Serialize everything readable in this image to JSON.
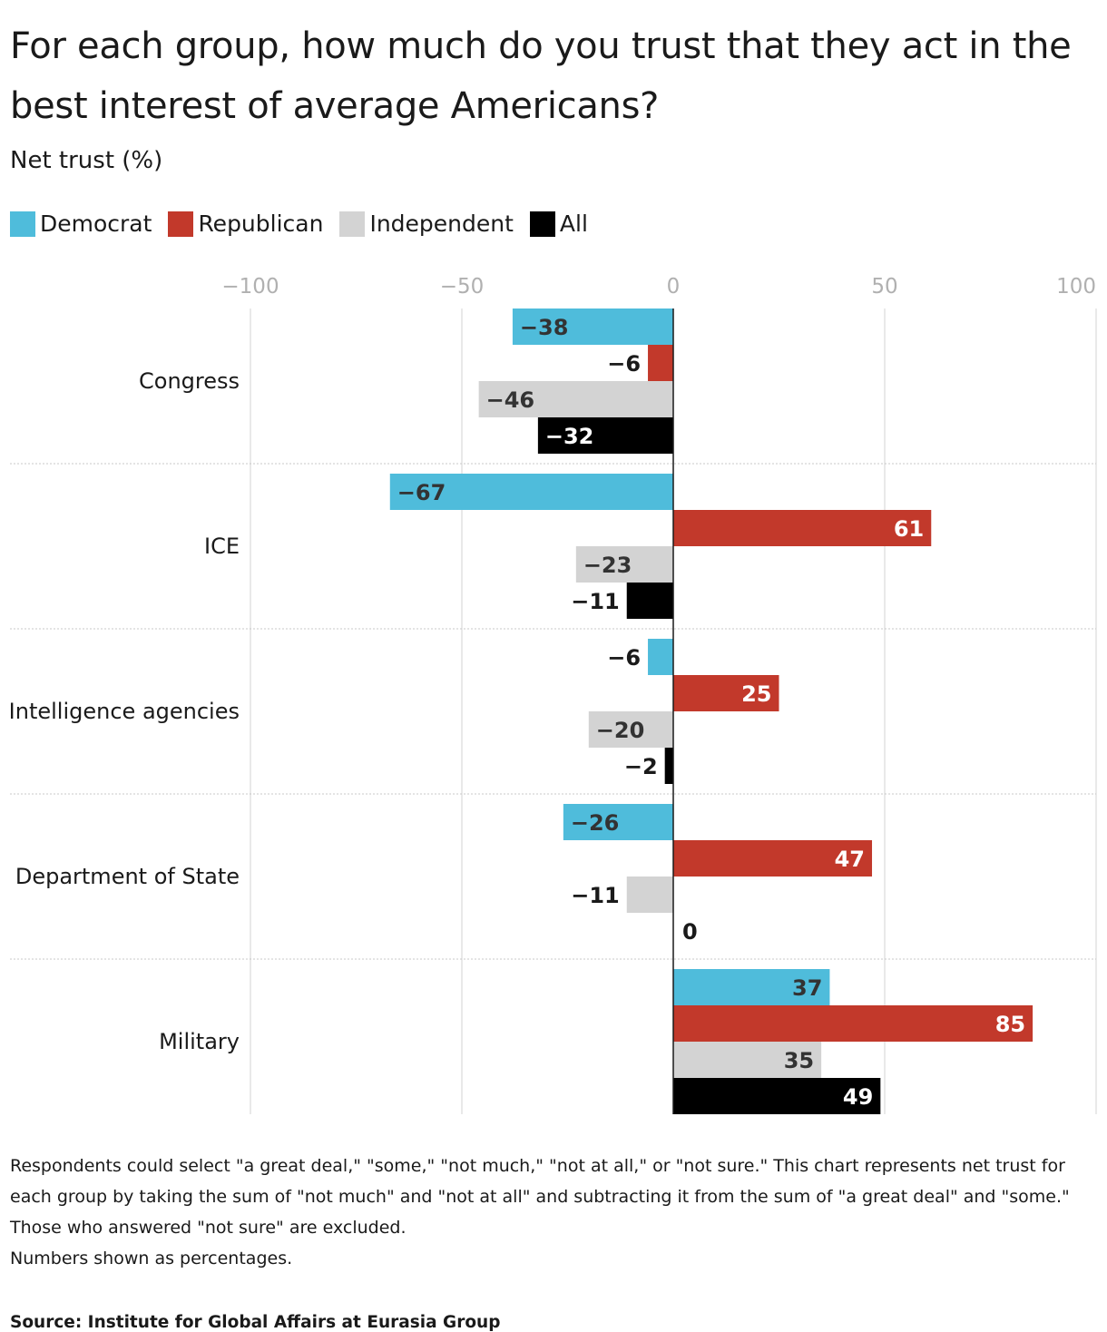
{
  "title": "For each group, how much do you trust that they act in the best interest of average Americans?",
  "subtitle": "Net trust (%)",
  "note": "Respondents could select \"a great deal,\" \"some,\" \"not much,\" \"not at all,\" or \"not sure.\" This chart represents net trust for each group by taking the sum of \"not much\" and \"not at all\" and subtracting it from the sum of \"a great deal\" and \"some.\" Those who answered \"not sure\" are excluded.",
  "note2": "Numbers shown as percentages.",
  "source": "Source: Institute for Global Affairs at Eurasia Group",
  "chart_data": {
    "type": "bar",
    "orientation": "horizontal",
    "title": "For each group, how much do you trust that they act in the best interest of average Americans?",
    "subtitle": "Net trust (%)",
    "xlim": [
      -100,
      100
    ],
    "x_ticks": [
      -100,
      -50,
      0,
      50,
      100
    ],
    "x_tick_labels": [
      "−100",
      "−50",
      "0",
      "50",
      "100"
    ],
    "grid": true,
    "legend_position": "top-left",
    "categories": [
      "Congress",
      "ICE",
      "Intelligence agencies",
      "Department of State",
      "Military"
    ],
    "series": [
      {
        "name": "Democrat",
        "color": "#4fbcdb",
        "values": [
          -38,
          -67,
          -6,
          -26,
          37
        ]
      },
      {
        "name": "Republican",
        "color": "#c2392b",
        "values": [
          -6,
          61,
          25,
          47,
          85
        ]
      },
      {
        "name": "Independent",
        "color": "#d3d3d3",
        "values": [
          -46,
          -23,
          -20,
          -11,
          35
        ]
      },
      {
        "name": "All",
        "color": "#000000",
        "values": [
          -32,
          -11,
          -2,
          0,
          49
        ]
      }
    ]
  }
}
